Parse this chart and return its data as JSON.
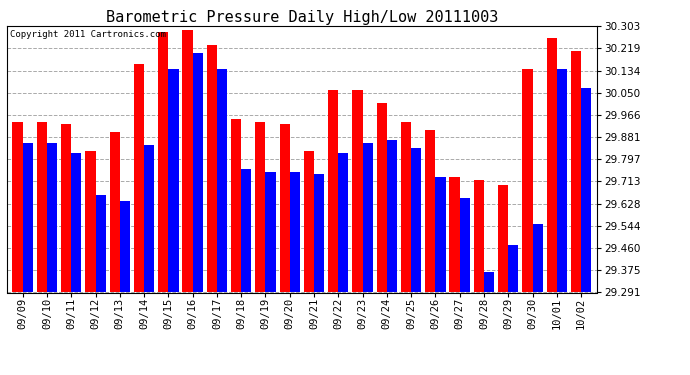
{
  "title": "Barometric Pressure Daily High/Low 20111003",
  "copyright": "Copyright 2011 Cartronics.com",
  "dates": [
    "09/09",
    "09/10",
    "09/11",
    "09/12",
    "09/13",
    "09/14",
    "09/15",
    "09/16",
    "09/17",
    "09/18",
    "09/19",
    "09/20",
    "09/21",
    "09/22",
    "09/23",
    "09/24",
    "09/25",
    "09/26",
    "09/27",
    "09/28",
    "09/29",
    "09/30",
    "10/01",
    "10/02"
  ],
  "highs": [
    29.94,
    29.94,
    29.93,
    29.83,
    29.9,
    30.16,
    30.28,
    30.29,
    30.23,
    29.95,
    29.94,
    29.93,
    29.83,
    30.06,
    30.06,
    30.01,
    29.94,
    29.91,
    29.73,
    29.72,
    29.7,
    30.14,
    30.26,
    30.21
  ],
  "lows": [
    29.86,
    29.86,
    29.82,
    29.66,
    29.64,
    29.85,
    30.14,
    30.2,
    30.14,
    29.76,
    29.75,
    29.75,
    29.74,
    29.82,
    29.86,
    29.87,
    29.84,
    29.73,
    29.65,
    29.37,
    29.47,
    29.55,
    30.14,
    30.07
  ],
  "ymin": 29.291,
  "ymax": 30.303,
  "yticks": [
    29.291,
    29.375,
    29.46,
    29.544,
    29.628,
    29.713,
    29.797,
    29.881,
    29.966,
    30.05,
    30.134,
    30.219,
    30.303
  ],
  "bar_width": 0.42,
  "high_color": "#FF0000",
  "low_color": "#0000FF",
  "bg_color": "#FFFFFF",
  "grid_color": "#AAAAAA",
  "title_fontsize": 11,
  "tick_fontsize": 7.5,
  "copyright_fontsize": 6.5
}
